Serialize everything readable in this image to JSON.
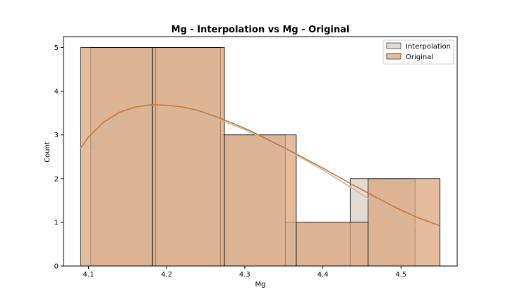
{
  "chart_data": {
    "type": "histogram",
    "title": "Mg - Interpolation vs Mg - Original",
    "xlabel": "Mg",
    "ylabel": "Count",
    "xlim": [
      4.068,
      4.572
    ],
    "ylim": [
      0,
      5.25
    ],
    "xticks": [
      4.1,
      4.2,
      4.3,
      4.4,
      4.5
    ],
    "yticks": [
      0,
      1,
      2,
      3,
      4,
      5
    ],
    "legend_position": "top-right",
    "series": [
      {
        "name": "Interpolation",
        "color": "#e3dbd2",
        "kde_color": "#c9b9a6",
        "bins": [
          {
            "x0": 4.103,
            "x1": 4.186,
            "count": 5
          },
          {
            "x0": 4.186,
            "x1": 4.269,
            "count": 5
          },
          {
            "x0": 4.269,
            "x1": 4.352,
            "count": 3
          },
          {
            "x0": 4.352,
            "x1": 4.435,
            "count": 1
          },
          {
            "x0": 4.435,
            "x1": 4.518,
            "count": 2
          }
        ],
        "kde": [
          [
            4.103,
            2.6
          ],
          [
            4.12,
            3.05
          ],
          [
            4.14,
            3.4
          ],
          [
            4.16,
            3.6
          ],
          [
            4.18,
            3.68
          ],
          [
            4.2,
            3.68
          ],
          [
            4.22,
            3.62
          ],
          [
            4.24,
            3.52
          ],
          [
            4.26,
            3.4
          ],
          [
            4.28,
            3.26
          ],
          [
            4.3,
            3.12
          ],
          [
            4.32,
            2.95
          ],
          [
            4.34,
            2.78
          ],
          [
            4.36,
            2.6
          ],
          [
            4.38,
            2.4
          ],
          [
            4.4,
            2.2
          ],
          [
            4.42,
            1.98
          ],
          [
            4.44,
            1.75
          ],
          [
            4.46,
            1.52
          ],
          [
            4.48,
            1.3
          ],
          [
            4.5,
            1.1
          ],
          [
            4.518,
            0.92
          ]
        ]
      },
      {
        "name": "Original",
        "color": "#d9a47a",
        "kde_color": "#c8763d",
        "bins": [
          {
            "x0": 4.09,
            "x1": 4.182,
            "count": 5
          },
          {
            "x0": 4.182,
            "x1": 4.274,
            "count": 5
          },
          {
            "x0": 4.274,
            "x1": 4.366,
            "count": 3
          },
          {
            "x0": 4.366,
            "x1": 4.458,
            "count": 1
          },
          {
            "x0": 4.458,
            "x1": 4.55,
            "count": 2
          }
        ],
        "kde": [
          [
            4.09,
            2.7
          ],
          [
            4.1,
            2.95
          ],
          [
            4.12,
            3.3
          ],
          [
            4.14,
            3.52
          ],
          [
            4.16,
            3.64
          ],
          [
            4.18,
            3.69
          ],
          [
            4.2,
            3.68
          ],
          [
            4.22,
            3.64
          ],
          [
            4.24,
            3.56
          ],
          [
            4.26,
            3.44
          ],
          [
            4.28,
            3.3
          ],
          [
            4.3,
            3.15
          ],
          [
            4.32,
            2.98
          ],
          [
            4.34,
            2.8
          ],
          [
            4.36,
            2.62
          ],
          [
            4.38,
            2.43
          ],
          [
            4.4,
            2.24
          ],
          [
            4.42,
            2.04
          ],
          [
            4.44,
            1.84
          ],
          [
            4.46,
            1.65
          ],
          [
            4.48,
            1.46
          ],
          [
            4.5,
            1.28
          ],
          [
            4.52,
            1.12
          ],
          [
            4.55,
            0.92
          ]
        ]
      }
    ]
  }
}
